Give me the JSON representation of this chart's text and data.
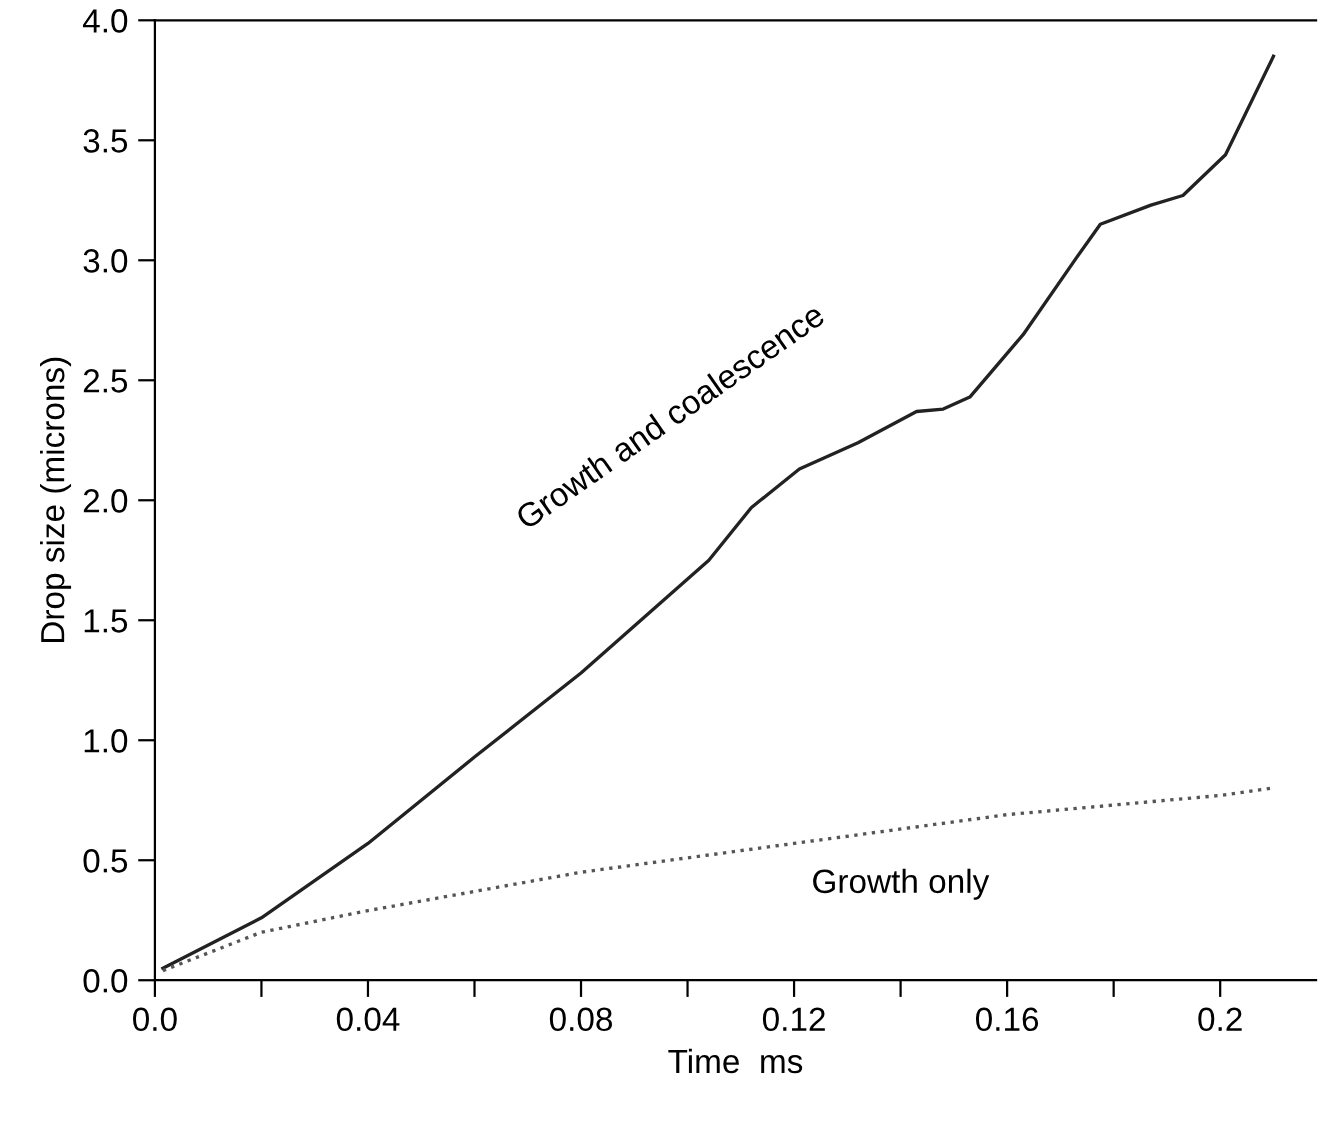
{
  "chart_data": {
    "type": "line",
    "xlabel": "Time  ms",
    "ylabel": "Drop size (microns)",
    "xlim": [
      0,
      0.218
    ],
    "ylim": [
      0,
      4.0
    ],
    "xticks": [
      {
        "value": 0,
        "label": "0.0"
      },
      {
        "value": 0.02,
        "label": null
      },
      0.04,
      {
        "value": 0.06,
        "label": null
      },
      0.08,
      {
        "value": 0.1,
        "label": null
      },
      0.12,
      {
        "value": 0.14,
        "label": null
      },
      0.16,
      {
        "value": 0.18,
        "label": null
      },
      0.2
    ],
    "yticks": [
      {
        "value": 0,
        "label": "0.0"
      },
      0.5,
      {
        "value": 1,
        "label": "1.0"
      },
      1.5,
      {
        "value": 2,
        "label": "2.0"
      },
      2.5,
      {
        "value": 3,
        "label": "3.0"
      },
      3.5,
      {
        "value": 4,
        "label": "4.0"
      }
    ],
    "grid": false,
    "legend": false,
    "series": [
      {
        "color": "#222222",
        "line_style": "solid",
        "x": [
          0.0015,
          0.02,
          0.04,
          0.06,
          0.08,
          0.104,
          0.112,
          0.121,
          0.132,
          0.143,
          0.148,
          0.153,
          0.163,
          0.173,
          0.1775,
          0.187,
          0.193,
          0.201,
          0.21
        ],
        "values": [
          0.05,
          0.26,
          0.57,
          0.93,
          1.28,
          1.75,
          1.97,
          2.13,
          2.24,
          2.37,
          2.38,
          2.43,
          2.69,
          3.01,
          3.15,
          3.23,
          3.27,
          3.44,
          3.85
        ]
      },
      {
        "color": "#555555",
        "line_style": "dotted",
        "x": [
          0.0015,
          0.02,
          0.04,
          0.08,
          0.12,
          0.16,
          0.2,
          0.2095
        ],
        "values": [
          0.04,
          0.2,
          0.29,
          0.45,
          0.57,
          0.69,
          0.77,
          0.8
        ]
      }
    ],
    "annotations": [
      "Growth and coalescence",
      "Growth only"
    ]
  }
}
